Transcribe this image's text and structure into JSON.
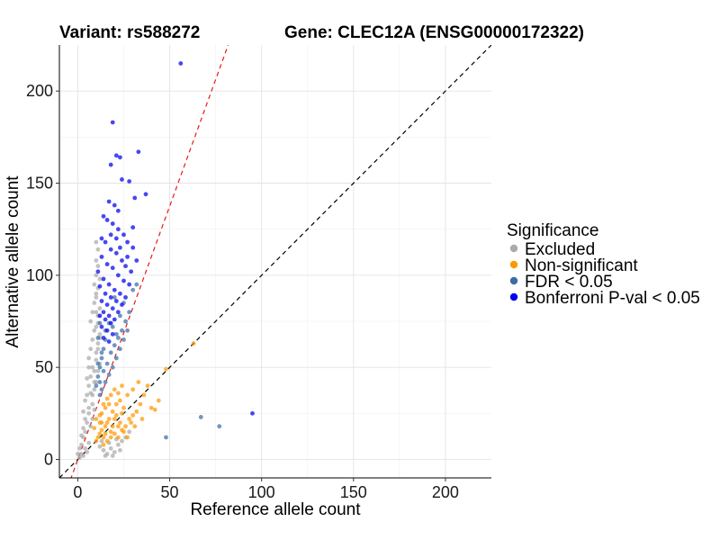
{
  "chart_data": {
    "type": "scatter",
    "title_left": "Variant: rs588272",
    "title_right": "Gene: CLEC12A (ENSG00000172322)",
    "xlabel": "Reference allele count",
    "ylabel": "Alternative allele count",
    "xlim": [
      -10,
      225
    ],
    "ylim": [
      -10,
      225
    ],
    "xticks": [
      0,
      50,
      100,
      150,
      200
    ],
    "yticks": [
      0,
      50,
      100,
      150,
      200
    ],
    "grid": true,
    "reference_lines": [
      {
        "name": "identity",
        "slope": 1,
        "intercept": 0,
        "color": "#000000",
        "style": "dashed"
      },
      {
        "name": "threshold",
        "slope": 2.75,
        "intercept": 0,
        "color": "#e41a1c",
        "style": "dashed"
      }
    ],
    "legend": {
      "title": "Significance",
      "position": "right",
      "entries": [
        {
          "label": "Excluded",
          "color": "#aaaaaa"
        },
        {
          "label": "Non-significant",
          "color": "#ff9900"
        },
        {
          "label": "FDR < 0.05",
          "color": "#3a6ea5"
        },
        {
          "label": "Bonferroni P-val < 0.05",
          "color": "#0000ee"
        }
      ]
    },
    "series": [
      {
        "name": "Excluded",
        "color": "#aaaaaa",
        "points": [
          [
            1,
            1
          ],
          [
            2,
            3
          ],
          [
            3,
            2
          ],
          [
            4,
            6
          ],
          [
            2,
            8
          ],
          [
            3,
            12
          ],
          [
            5,
            4
          ],
          [
            6,
            9
          ],
          [
            4,
            15
          ],
          [
            5,
            20
          ],
          [
            6,
            25
          ],
          [
            7,
            18
          ],
          [
            8,
            30
          ],
          [
            5,
            35
          ],
          [
            6,
            40
          ],
          [
            7,
            45
          ],
          [
            8,
            50
          ],
          [
            6,
            55
          ],
          [
            7,
            60
          ],
          [
            8,
            65
          ],
          [
            9,
            70
          ],
          [
            7,
            75
          ],
          [
            8,
            80
          ],
          [
            9,
            85
          ],
          [
            10,
            90
          ],
          [
            9,
            95
          ],
          [
            10,
            100
          ],
          [
            11,
            105
          ],
          [
            9,
            38
          ],
          [
            10,
            42
          ],
          [
            11,
            48
          ],
          [
            12,
            52
          ],
          [
            10,
            58
          ],
          [
            11,
            63
          ],
          [
            12,
            68
          ],
          [
            10,
            72
          ],
          [
            11,
            78
          ],
          [
            12,
            82
          ],
          [
            10,
            88
          ],
          [
            11,
            93
          ],
          [
            12,
            98
          ],
          [
            10,
            108
          ],
          [
            11,
            114
          ],
          [
            10,
            118
          ],
          [
            12,
            7
          ],
          [
            14,
            5
          ],
          [
            16,
            3
          ],
          [
            18,
            6
          ],
          [
            20,
            4
          ],
          [
            22,
            8
          ],
          [
            24,
            10
          ],
          [
            26,
            12
          ],
          [
            15,
            2
          ],
          [
            19,
            2
          ],
          [
            23,
            5
          ],
          [
            28,
            15
          ],
          [
            13,
            10
          ],
          [
            17,
            9
          ],
          [
            21,
            11
          ],
          [
            3,
            26
          ],
          [
            4,
            32
          ],
          [
            6,
            28
          ],
          [
            7,
            36
          ],
          [
            5,
            44
          ],
          [
            6,
            50
          ],
          [
            8,
            22
          ],
          [
            9,
            27
          ],
          [
            8,
            35
          ],
          [
            9,
            42
          ],
          [
            9,
            48
          ],
          [
            10,
            54
          ],
          [
            11,
            60
          ],
          [
            12,
            66
          ],
          [
            3,
            17
          ],
          [
            4,
            22
          ],
          [
            2,
            13
          ],
          [
            1,
            6
          ],
          [
            0,
            3
          ],
          [
            11,
            74
          ],
          [
            10,
            80
          ]
        ]
      },
      {
        "name": "Non-significant",
        "color": "#ff9900",
        "points": [
          [
            10,
            10
          ],
          [
            12,
            14
          ],
          [
            14,
            12
          ],
          [
            15,
            18
          ],
          [
            16,
            20
          ],
          [
            18,
            15
          ],
          [
            20,
            22
          ],
          [
            22,
            18
          ],
          [
            24,
            25
          ],
          [
            12,
            20
          ],
          [
            13,
            25
          ],
          [
            15,
            28
          ],
          [
            17,
            30
          ],
          [
            19,
            26
          ],
          [
            21,
            30
          ],
          [
            23,
            32
          ],
          [
            25,
            28
          ],
          [
            14,
            8
          ],
          [
            16,
            10
          ],
          [
            18,
            12
          ],
          [
            20,
            14
          ],
          [
            22,
            12
          ],
          [
            24,
            16
          ],
          [
            26,
            18
          ],
          [
            28,
            22
          ],
          [
            30,
            24
          ],
          [
            32,
            26
          ],
          [
            34,
            30
          ],
          [
            36,
            35
          ],
          [
            38,
            40
          ],
          [
            30,
            38
          ],
          [
            33,
            42
          ],
          [
            27,
            35
          ],
          [
            29,
            20
          ],
          [
            31,
            18
          ],
          [
            35,
            22
          ],
          [
            40,
            28
          ],
          [
            42,
            27
          ],
          [
            44,
            32
          ],
          [
            13,
            16
          ],
          [
            15,
            14
          ],
          [
            17,
            22
          ],
          [
            19,
            18
          ],
          [
            21,
            24
          ],
          [
            23,
            20
          ],
          [
            11,
            12
          ],
          [
            13,
            20
          ],
          [
            18,
            35
          ],
          [
            20,
            38
          ],
          [
            22,
            36
          ],
          [
            16,
            33
          ],
          [
            25,
            15
          ],
          [
            27,
            12
          ],
          [
            12,
            24
          ],
          [
            14,
            30
          ],
          [
            48,
            49
          ],
          [
            63,
            63
          ],
          [
            9,
            17
          ],
          [
            10,
            22
          ],
          [
            24,
            40
          ]
        ]
      },
      {
        "name": "FDR < 0.05",
        "color": "#3a6ea5",
        "points": [
          [
            10,
            40
          ],
          [
            11,
            45
          ],
          [
            12,
            50
          ],
          [
            13,
            55
          ],
          [
            14,
            60
          ],
          [
            15,
            65
          ],
          [
            12,
            42
          ],
          [
            14,
            48
          ],
          [
            16,
            52
          ],
          [
            18,
            58
          ],
          [
            20,
            62
          ],
          [
            22,
            66
          ],
          [
            24,
            70
          ],
          [
            26,
            75
          ],
          [
            28,
            80
          ],
          [
            12,
            35
          ],
          [
            13,
            38
          ],
          [
            15,
            42
          ],
          [
            17,
            46
          ],
          [
            19,
            50
          ],
          [
            21,
            55
          ],
          [
            23,
            60
          ],
          [
            25,
            65
          ],
          [
            27,
            70
          ],
          [
            11,
            52
          ],
          [
            13,
            58
          ],
          [
            15,
            70
          ],
          [
            17,
            74
          ],
          [
            19,
            72
          ],
          [
            21,
            68
          ],
          [
            23,
            78
          ],
          [
            20,
            88
          ],
          [
            25,
            85
          ],
          [
            30,
            92
          ],
          [
            32,
            95
          ],
          [
            67,
            23
          ],
          [
            77,
            18
          ],
          [
            48,
            12
          ],
          [
            11,
            66
          ],
          [
            12,
            74
          ]
        ]
      },
      {
        "name": "Bonferroni P-val < 0.05",
        "color": "#0000ee",
        "points": [
          [
            56,
            215
          ],
          [
            19,
            183
          ],
          [
            33,
            167
          ],
          [
            21,
            165
          ],
          [
            23,
            164
          ],
          [
            18,
            160
          ],
          [
            24,
            152
          ],
          [
            28,
            151
          ],
          [
            37,
            144
          ],
          [
            31,
            142
          ],
          [
            17,
            140
          ],
          [
            20,
            138
          ],
          [
            22,
            135
          ],
          [
            14,
            132
          ],
          [
            16,
            130
          ],
          [
            19,
            128
          ],
          [
            22,
            125
          ],
          [
            25,
            122
          ],
          [
            27,
            118
          ],
          [
            30,
            115
          ],
          [
            15,
            118
          ],
          [
            18,
            114
          ],
          [
            21,
            112
          ],
          [
            24,
            108
          ],
          [
            26,
            105
          ],
          [
            29,
            102
          ],
          [
            13,
            110
          ],
          [
            16,
            106
          ],
          [
            19,
            104
          ],
          [
            22,
            100
          ],
          [
            25,
            97
          ],
          [
            28,
            95
          ],
          [
            14,
            98
          ],
          [
            17,
            95
          ],
          [
            20,
            92
          ],
          [
            23,
            90
          ],
          [
            26,
            88
          ],
          [
            12,
            94
          ],
          [
            15,
            90
          ],
          [
            18,
            88
          ],
          [
            21,
            86
          ],
          [
            24,
            84
          ],
          [
            13,
            86
          ],
          [
            16,
            84
          ],
          [
            19,
            82
          ],
          [
            22,
            80
          ],
          [
            14,
            80
          ],
          [
            17,
            78
          ],
          [
            20,
            76
          ],
          [
            12,
            78
          ],
          [
            15,
            76
          ],
          [
            18,
            74
          ],
          [
            13,
            72
          ],
          [
            16,
            70
          ],
          [
            19,
            68
          ],
          [
            14,
            66
          ],
          [
            17,
            64
          ],
          [
            21,
            120
          ],
          [
            23,
            115
          ],
          [
            18,
            122
          ],
          [
            27,
            110
          ],
          [
            30,
            126
          ],
          [
            32,
            108
          ],
          [
            11,
            102
          ],
          [
            13,
            120
          ],
          [
            95,
            25
          ]
        ]
      }
    ]
  }
}
